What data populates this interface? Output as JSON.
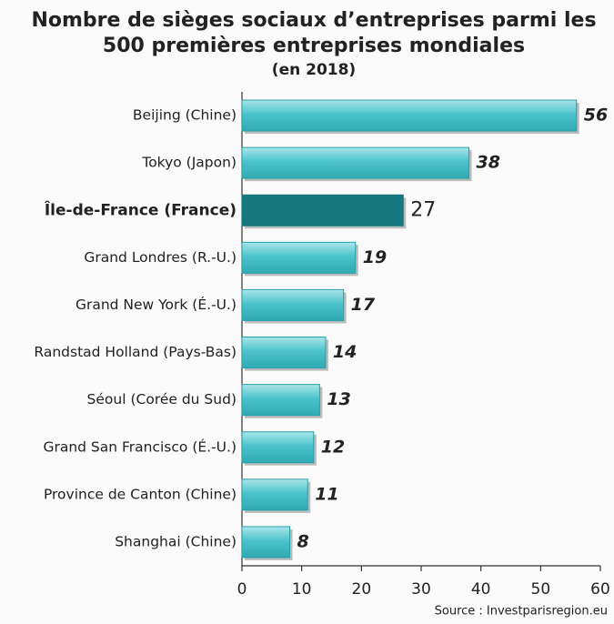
{
  "chart_data": {
    "type": "bar",
    "orientation": "horizontal",
    "title": [
      "Nombre de sièges sociaux d’entreprises parmi les",
      "500 premières entreprises mondiales"
    ],
    "subtitle": "(en 2018)",
    "categories": [
      "Beijing (Chine)",
      "Tokyo (Japon)",
      "Île-de-France (France)",
      "Grand Londres (R.-U.)",
      "Grand New York (É.-U.)",
      "Randstad Holland (Pays-Bas)",
      "Séoul (Corée du Sud)",
      "Grand San Francisco (É.-U.)",
      "Province de Canton (Chine)",
      "Shanghai (Chine)"
    ],
    "values": [
      56,
      38,
      27,
      19,
      17,
      14,
      13,
      12,
      11,
      8
    ],
    "color": "#4cc3cc",
    "colors": [
      "#4cc3cc",
      "#4cc3cc",
      "#17797f",
      "#4cc3cc",
      "#4cc3cc",
      "#4cc3cc",
      "#4cc3cc",
      "#4cc3cc",
      "#4cc3cc",
      "#4cc3cc"
    ],
    "xlim": [
      0,
      60
    ],
    "xticks": [
      0,
      10,
      20,
      30,
      40,
      50,
      60
    ],
    "grid": false,
    "source": "Source : Investparisregion.eu"
  }
}
